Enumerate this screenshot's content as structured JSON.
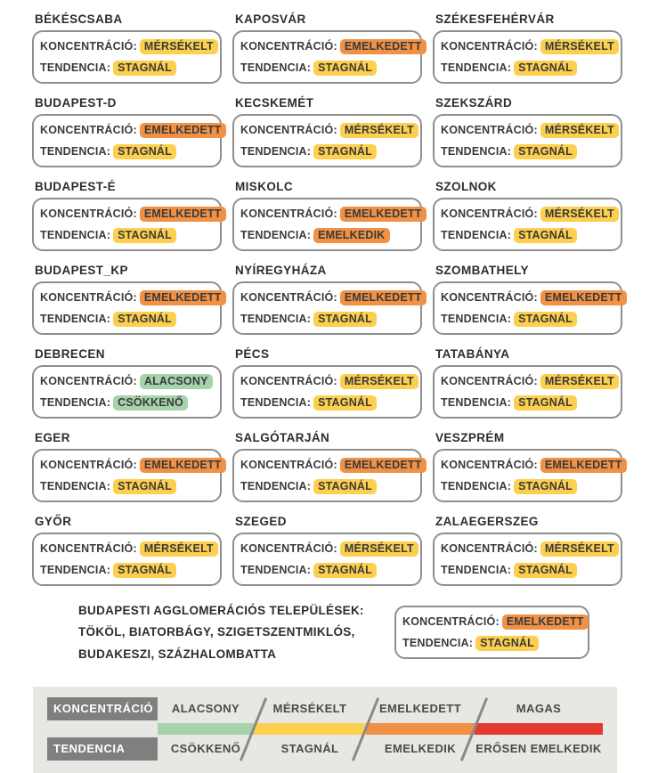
{
  "labels": {
    "koncentracio": "KONCENTRÁCIÓ:",
    "tendencia": "TENDENCIA:"
  },
  "colors": {
    "alacsony": "#a6d3ab",
    "csokkeno": "#a6d3ab",
    "mersekelt": "#fcd04e",
    "stagnal": "#fcd04e",
    "emelkedett": "#f09145",
    "emelkedik": "#f09145",
    "magas": "#e23a2e",
    "erosen_emelkedik": "#e23a2e",
    "legend_panel": "#e9e7e4",
    "legend_label_box": "#7f7f7f"
  },
  "cities": [
    {
      "name": "BÉKÉSCSABA",
      "k": "MÉRSÉKELT",
      "k_level": "mersekelt",
      "t": "STAGNÁL",
      "t_level": "stagnal"
    },
    {
      "name": "KAPOSVÁR",
      "k": "EMELKEDETT",
      "k_level": "emelkedett",
      "t": "STAGNÁL",
      "t_level": "stagnal"
    },
    {
      "name": "SZÉKESFEHÉRVÁR",
      "k": "MÉRSÉKELT",
      "k_level": "mersekelt",
      "t": "STAGNÁL",
      "t_level": "stagnal"
    },
    {
      "name": "BUDAPEST-D",
      "k": "EMELKEDETT",
      "k_level": "emelkedett",
      "t": "STAGNÁL",
      "t_level": "stagnal"
    },
    {
      "name": "KECSKEMÉT",
      "k": "MÉRSÉKELT",
      "k_level": "mersekelt",
      "t": "STAGNÁL",
      "t_level": "stagnal"
    },
    {
      "name": "SZEKSZÁRD",
      "k": "MÉRSÉKELT",
      "k_level": "mersekelt",
      "t": "STAGNÁL",
      "t_level": "stagnal"
    },
    {
      "name": "BUDAPEST-É",
      "k": "EMELKEDETT",
      "k_level": "emelkedett",
      "t": "STAGNÁL",
      "t_level": "stagnal"
    },
    {
      "name": "MISKOLC",
      "k": "EMELKEDETT",
      "k_level": "emelkedett",
      "t": "EMELKEDIK",
      "t_level": "emelkedik"
    },
    {
      "name": "SZOLNOK",
      "k": "MÉRSÉKELT",
      "k_level": "mersekelt",
      "t": "STAGNÁL",
      "t_level": "stagnal"
    },
    {
      "name": "BUDAPEST_KP",
      "k": "EMELKEDETT",
      "k_level": "emelkedett",
      "t": "STAGNÁL",
      "t_level": "stagnal"
    },
    {
      "name": "NYÍREGYHÁZA",
      "k": "EMELKEDETT",
      "k_level": "emelkedett",
      "t": "STAGNÁL",
      "t_level": "stagnal"
    },
    {
      "name": "SZOMBATHELY",
      "k": "EMELKEDETT",
      "k_level": "emelkedett",
      "t": "STAGNÁL",
      "t_level": "stagnal"
    },
    {
      "name": "DEBRECEN",
      "k": "ALACSONY",
      "k_level": "alacsony",
      "t": "CSÖKKENŐ",
      "t_level": "csokkeno"
    },
    {
      "name": "PÉCS",
      "k": "MÉRSÉKELT",
      "k_level": "mersekelt",
      "t": "STAGNÁL",
      "t_level": "stagnal"
    },
    {
      "name": "TATABÁNYA",
      "k": "MÉRSÉKELT",
      "k_level": "mersekelt",
      "t": "STAGNÁL",
      "t_level": "stagnal"
    },
    {
      "name": "EGER",
      "k": "EMELKEDETT",
      "k_level": "emelkedett",
      "t": "STAGNÁL",
      "t_level": "stagnal"
    },
    {
      "name": "SALGÓTARJÁN",
      "k": "EMELKEDETT",
      "k_level": "emelkedett",
      "t": "STAGNÁL",
      "t_level": "stagnal"
    },
    {
      "name": "VESZPRÉM",
      "k": "EMELKEDETT",
      "k_level": "emelkedett",
      "t": "STAGNÁL",
      "t_level": "stagnal"
    },
    {
      "name": "GYŐR",
      "k": "MÉRSÉKELT",
      "k_level": "mersekelt",
      "t": "STAGNÁL",
      "t_level": "stagnal"
    },
    {
      "name": "SZEGED",
      "k": "MÉRSÉKELT",
      "k_level": "mersekelt",
      "t": "STAGNÁL",
      "t_level": "stagnal"
    },
    {
      "name": "ZALAEGERSZEG",
      "k": "MÉRSÉKELT",
      "k_level": "mersekelt",
      "t": "STAGNÁL",
      "t_level": "stagnal"
    }
  ],
  "agglomeration": {
    "line1": "BUDAPESTI AGGLOMERÁCIÓS TELEPÜLÉSEK:",
    "line2": "TÖKÖL, BIATORBÁGY, SZIGETSZENTMIKLÓS,",
    "line3": "BUDAKESZI, SZÁZHALOMBATTA",
    "k": "EMELKEDETT",
    "k_level": "emelkedett",
    "t": "STAGNÁL",
    "t_level": "stagnal"
  },
  "legend": {
    "row1_label": "KONCENTRÁCIÓ",
    "row2_label": "TENDENCIA",
    "koncentracio_levels": [
      "ALACSONY",
      "MÉRSÉKELT",
      "EMELKEDETT",
      "MAGAS"
    ],
    "tendencia_levels": [
      "CSÖKKENŐ",
      "STAGNÁL",
      "EMELKEDIK",
      "ERŐSEN EMELKEDIK"
    ],
    "bar_keys": [
      "alacsony",
      "mersekelt",
      "emelkedett",
      "magas"
    ]
  }
}
